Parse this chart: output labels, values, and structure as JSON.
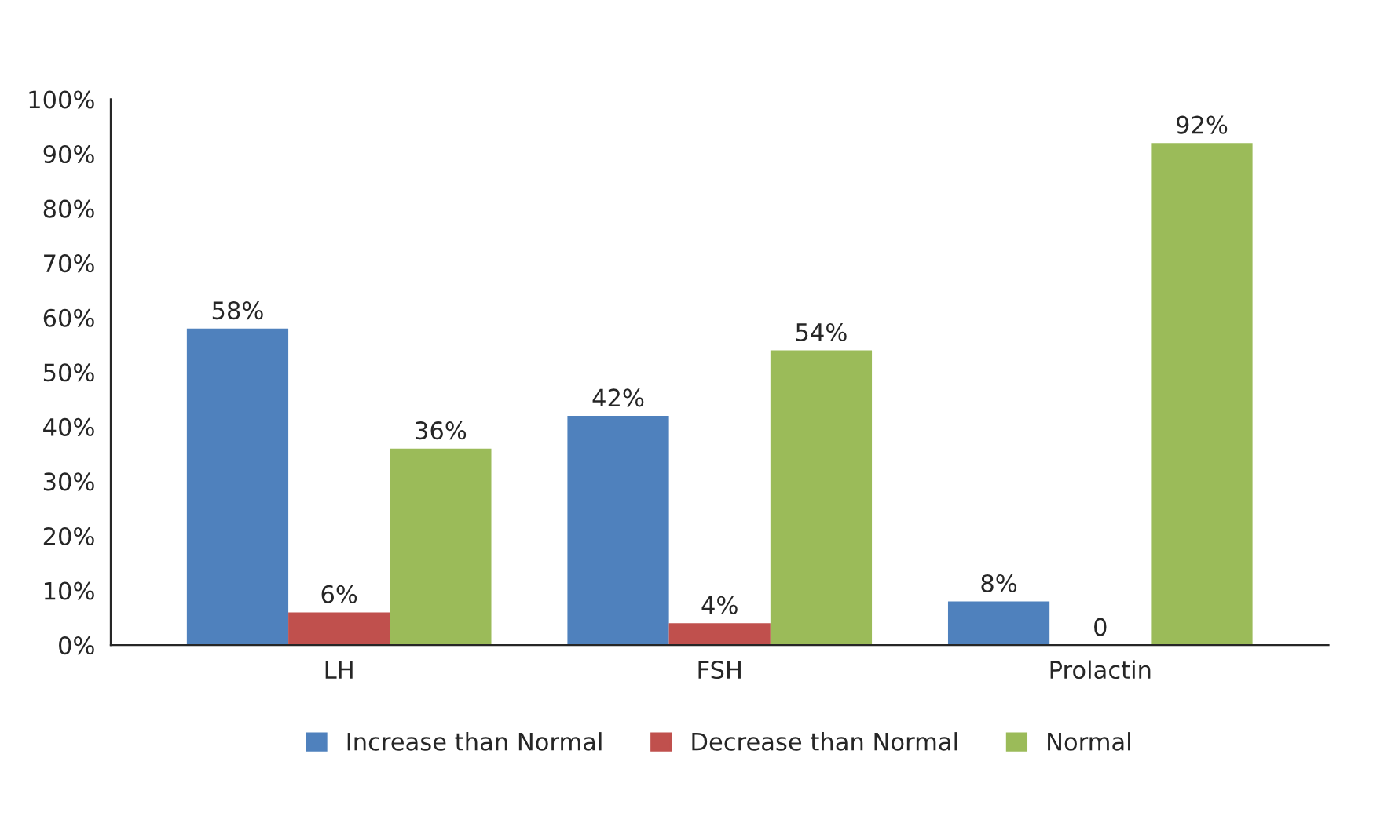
{
  "chart_data": {
    "type": "bar",
    "categories": [
      "LH",
      "FSH",
      "Prolactin"
    ],
    "series": [
      {
        "name": "Increase than Normal",
        "color": "#4f81bd",
        "values": [
          58,
          42,
          8
        ],
        "value_labels": [
          "58%",
          "42%",
          "8%"
        ]
      },
      {
        "name": "Decrease than Normal",
        "color": "#c0504d",
        "values": [
          6,
          4,
          0
        ],
        "value_labels": [
          "6%",
          "4%",
          "0"
        ]
      },
      {
        "name": "Normal",
        "color": "#9bbb59",
        "values": [
          36,
          54,
          92
        ],
        "value_labels": [
          "36%",
          "54%",
          "92%"
        ]
      }
    ],
    "ylim": [
      0,
      100
    ],
    "yticks": [
      {
        "value": 0,
        "label": "0%"
      },
      {
        "value": 10,
        "label": "10%"
      },
      {
        "value": 20,
        "label": "20%"
      },
      {
        "value": 30,
        "label": "30%"
      },
      {
        "value": 40,
        "label": "40%"
      },
      {
        "value": 50,
        "label": "50%"
      },
      {
        "value": 60,
        "label": "60%"
      },
      {
        "value": 70,
        "label": "70%"
      },
      {
        "value": 80,
        "label": "80%"
      },
      {
        "value": 90,
        "label": "90%"
      },
      {
        "value": 100,
        "label": "100%"
      }
    ],
    "grid": false,
    "legend": "bottom"
  }
}
